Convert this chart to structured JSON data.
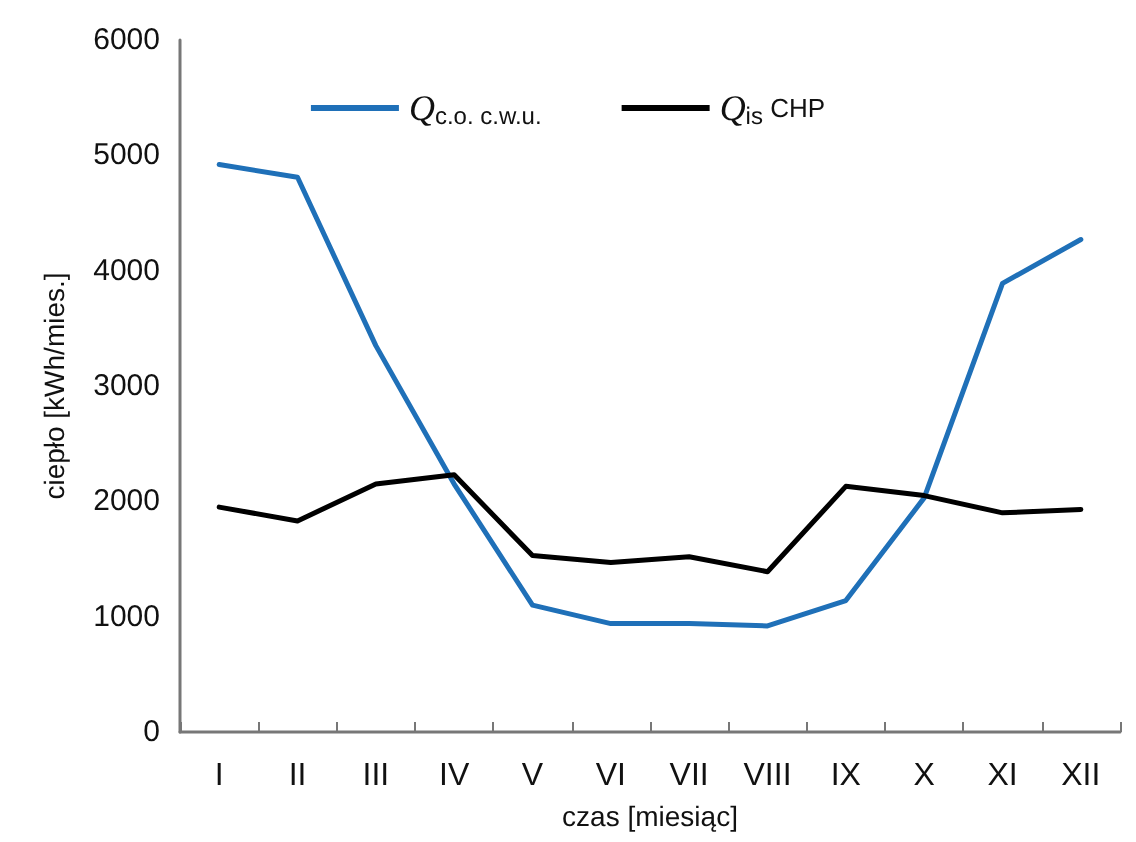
{
  "chart_data": {
    "type": "line",
    "xlabel": "czas [miesiąc]",
    "ylabel": "ciepło [kWh/mies.]",
    "categories": [
      "I",
      "II",
      "III",
      "IV",
      "V",
      "VI",
      "VII",
      "VIII",
      "IX",
      "X",
      "XI",
      "XII"
    ],
    "series": [
      {
        "name": "Q$_{c.o. c.w.u.}$",
        "color": "#1f70b8",
        "values": [
          4920,
          4810,
          3350,
          2150,
          1100,
          940,
          940,
          920,
          1140,
          2030,
          3890,
          4270
        ]
      },
      {
        "name": "Q$_{is}$ CHP",
        "color": "#000000",
        "values": [
          1950,
          1830,
          2150,
          2230,
          1530,
          1470,
          1520,
          1390,
          2130,
          2050,
          1900,
          1930
        ]
      }
    ],
    "ylim": [
      0,
      6000
    ],
    "yticks": [
      0,
      1000,
      2000,
      3000,
      4000,
      5000,
      6000
    ],
    "grid": false,
    "legend": "top",
    "marker": "none",
    "line_style": "solid"
  }
}
